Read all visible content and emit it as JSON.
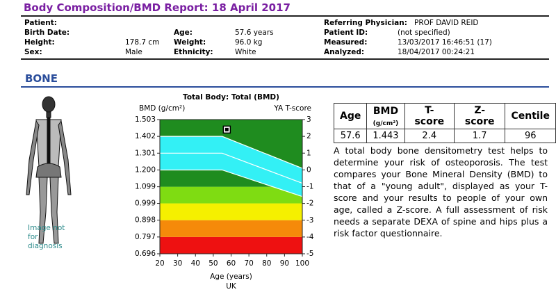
{
  "header": {
    "title": "Body Composition/BMD Report: 18 April 2017"
  },
  "patient_info": [
    [
      {
        "label": "Patient:"
      },
      {
        "label": "Referring Physician:",
        "value": "PROF DAVID REID"
      }
    ],
    [
      {
        "label": "Birth Date:"
      },
      {
        "label": "Age:",
        "value": "57.6 years"
      },
      {
        "label": "Patient ID:",
        "value": "(not specified)"
      }
    ],
    [
      {
        "label": "Height:",
        "value": "178.7 cm"
      },
      {
        "label": "Weight:",
        "value": "96.0 kg"
      },
      {
        "label": "Measured:",
        "value": "13/03/2017 16:46:51 (17)"
      }
    ],
    [
      {
        "label": "Sex:",
        "value": "Male"
      },
      {
        "label": "Ethnicity:",
        "value": "White"
      },
      {
        "label": "Analyzed:",
        "value": "18/04/2017 00:24:21"
      }
    ]
  ],
  "section": {
    "title": "BONE",
    "image_note": "Image not for diagnosis"
  },
  "chart_data": {
    "type": "scatter",
    "title": "Total Body: Total (BMD)",
    "ylabel": "BMD (g/cm²)",
    "y2label": "YA T-score",
    "xlabel": "Age (years)",
    "footnote": "UK",
    "x": [
      57.6
    ],
    "values": [
      1.443
    ],
    "xlim": [
      20,
      100
    ],
    "xticks": [
      20,
      30,
      40,
      50,
      60,
      70,
      80,
      90,
      100
    ],
    "ylim": [
      0.696,
      1.503
    ],
    "yticks": [
      1.503,
      1.402,
      1.301,
      {
        "value": 1.2,
        "label": "1.200"
      },
      1.099,
      0.999,
      0.898,
      0.797,
      0.696
    ],
    "y2lim": [
      -5,
      3
    ],
    "y2ticks": [
      3,
      2,
      1,
      0,
      -1,
      -2,
      -3,
      -4,
      -5
    ],
    "bands": [
      {
        "lo": 0.696,
        "hi": 0.797,
        "color": "#ee1111"
      },
      {
        "lo": 0.797,
        "hi": 0.898,
        "color": "#f58a0a"
      },
      {
        "lo": 0.898,
        "hi": 0.999,
        "color": "#f5f000"
      },
      {
        "lo": 0.999,
        "hi": 1.099,
        "color": "#7fdc12"
      },
      {
        "lo": 1.099,
        "hi": 1.503,
        "color": "#1f8c1f"
      }
    ],
    "reference_band": {
      "color": "#33f0f5",
      "ages": [
        20,
        55,
        100
      ],
      "upper": [
        1.402,
        1.402,
        1.21
      ],
      "mid": [
        1.301,
        1.301,
        1.12
      ],
      "lower": [
        1.2,
        1.2,
        1.04
      ]
    }
  },
  "results_table": {
    "headers": [
      "Age",
      "BMD",
      "T-score",
      "Z-score",
      "Centile"
    ],
    "bmd_unit": "(g/cm²)",
    "row": [
      "57.6",
      "1.443",
      "2.4",
      "1.7",
      "96"
    ]
  },
  "description": "A total body bone densitometry test helps to determine your risk of osteoporosis. The test compares your Bone Mineral Density (BMD) to that of a \"young adult\", displayed as your T-score and your results to people of your own age, called a Z-score. A full assessment of risk needs a separate DEXA of spine and hips plus a risk factor questionnaire."
}
